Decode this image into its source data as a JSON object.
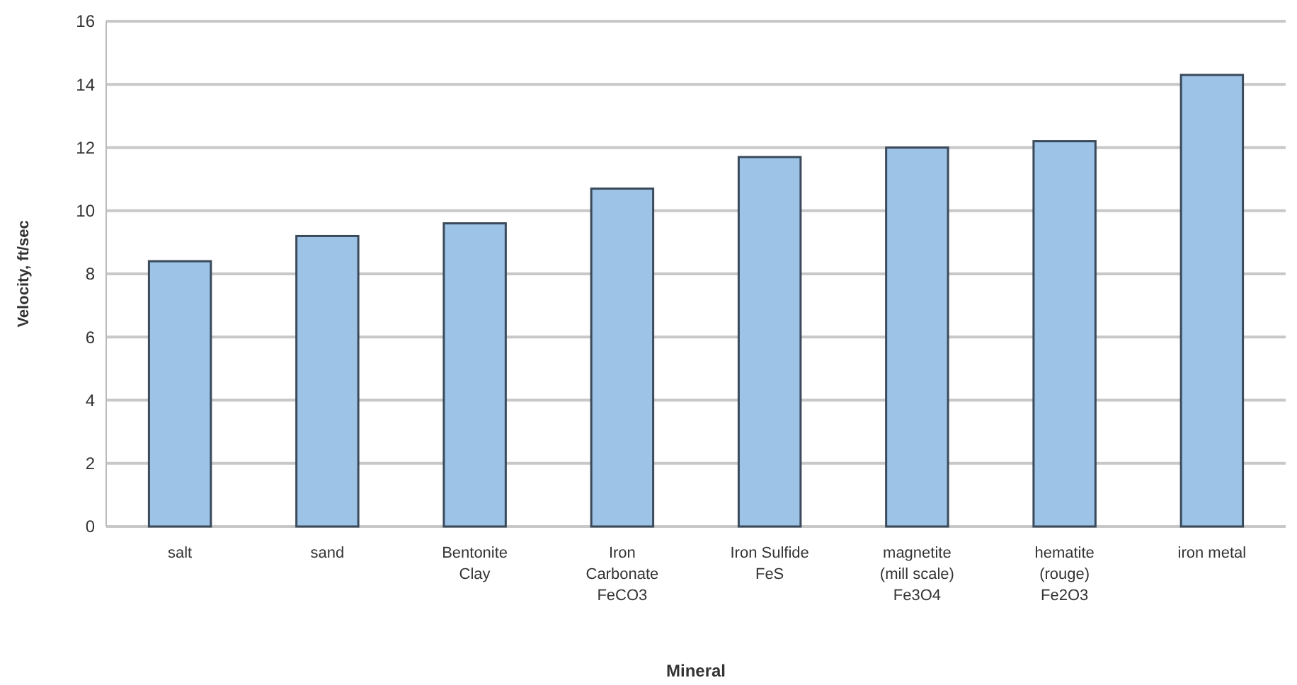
{
  "chart_data": {
    "type": "bar",
    "xlabel": "Mineral",
    "ylabel": "Velocity, ft/sec",
    "categories": [
      "salt",
      "sand",
      "Bentonite\nClay",
      "Iron\nCarbonate\nFeCO3",
      "Iron Sulfide\nFeS",
      "magnetite\n(mill scale)\nFe3O4",
      "hematite\n(rouge)\nFe2O3",
      "iron metal"
    ],
    "values": [
      8.4,
      9.2,
      9.6,
      10.7,
      11.7,
      12.0,
      12.2,
      14.3
    ],
    "color": "#9dc3e6",
    "ylim": [
      0,
      16
    ],
    "yticks": [
      0,
      2,
      4,
      6,
      8,
      10,
      12,
      14,
      16
    ],
    "grid": "y"
  }
}
